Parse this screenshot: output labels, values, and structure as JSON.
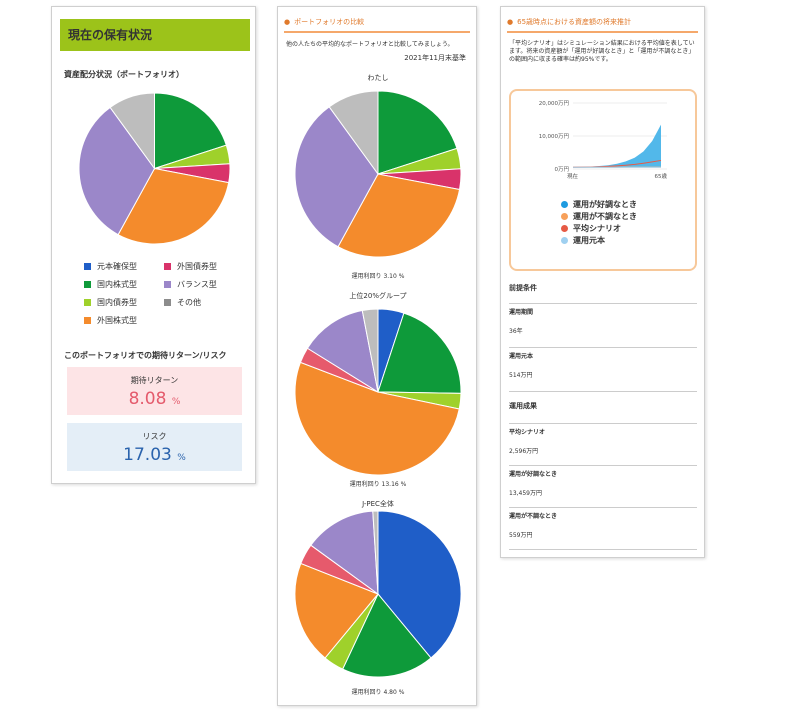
{
  "left": {
    "header": "現在の保有状況",
    "subtitle": "資産配分状況（ポートフォリオ）",
    "legend": [
      {
        "label": "元本確保型",
        "color": "#1f5ec8"
      },
      {
        "label": "外国債券型",
        "color": "#d9336a"
      },
      {
        "label": "国内株式型",
        "color": "#0e9a3a"
      },
      {
        "label": "バランス型",
        "color": "#9b87c9"
      },
      {
        "label": "国内債券型",
        "color": "#9fd12b"
      },
      {
        "label": "その他",
        "color": "#8c8c8c"
      },
      {
        "label": "外国株式型",
        "color": "#f48b2c"
      }
    ],
    "section_title": "このポートフォリオでの期待リターン/リスク",
    "expected_return": {
      "label": "期待リターン",
      "value": "8.08",
      "unit": "%"
    },
    "risk": {
      "label": "リスク",
      "value": "17.03",
      "unit": "%"
    }
  },
  "mid": {
    "header": "ポートフォリオの比較",
    "intro": "他の人たちの平均的なポートフォリオと比較してみましょう。",
    "as_of": "2021年11月末基準",
    "pies": [
      {
        "title": "わたし",
        "caption": "運用利回り 3.10 %"
      },
      {
        "title": "上位20%グループ",
        "caption": "運用利回り 13.16 %"
      },
      {
        "title": "J-PEC全体",
        "caption": "運用利回り 4.80 %"
      }
    ]
  },
  "right": {
    "header": "65歳時点における資産額の将来推計",
    "desc": "「平均シナリオ」はシミュレーション結果における平均値を表しています。将来の資産額が「運用が好調なとき」と「運用が不調なとき」の範囲内に収まる確率は約95%です。",
    "y_ticks": [
      "20,000万円",
      "10,000万円",
      "0万円"
    ],
    "x_ticks": [
      "現在",
      "65歳"
    ],
    "legend": [
      {
        "label": "運用が好調なとき",
        "color": "#1e9be0"
      },
      {
        "label": "運用が不調なとき",
        "color": "#f7a05a"
      },
      {
        "label": "平均シナリオ",
        "color": "#e65a45"
      },
      {
        "label": "運用元本",
        "color": "#9fd0f0"
      }
    ],
    "conditions_title": "前提条件",
    "conditions": [
      {
        "label": "運用期間",
        "value": "36年"
      },
      {
        "label": "運用元本",
        "value": "514万円"
      }
    ],
    "results_title": "運用成果",
    "results": [
      {
        "label": "平均シナリオ",
        "value": "2,596万円"
      },
      {
        "label": "運用が好調なとき",
        "value": "13,459万円"
      },
      {
        "label": "運用が不調なとき",
        "value": "559万円"
      }
    ]
  },
  "chart_data": [
    {
      "type": "pie",
      "name": "my-portfolio",
      "categories": [
        "国内株式型",
        "国内債券型",
        "外国債券型",
        "外国株式型",
        "バランス型",
        "その他"
      ],
      "colors": [
        "#0e9a3a",
        "#9fd12b",
        "#d9336a",
        "#f48b2c",
        "#9b87c9",
        "#bdbdbd"
      ],
      "values": [
        20,
        4,
        4,
        30,
        32,
        10
      ]
    },
    {
      "type": "pie",
      "name": "top20-group",
      "categories": [
        "元本確保型",
        "国内株式型",
        "国内債券型",
        "外国株式型",
        "外国債券型",
        "バランス型",
        "その他"
      ],
      "colors": [
        "#1f5ec8",
        "#0e9a3a",
        "#9fd12b",
        "#f48b2c",
        "#e65a6c",
        "#9b87c9",
        "#bdbdbd"
      ],
      "values": [
        5,
        20,
        3,
        52,
        3,
        13,
        3
      ]
    },
    {
      "type": "pie",
      "name": "jpec-all",
      "categories": [
        "元本確保型",
        "国内株式型",
        "国内債券型",
        "外国株式型",
        "外国債券型",
        "バランス型",
        "その他"
      ],
      "colors": [
        "#1f5ec8",
        "#0e9a3a",
        "#9fd12b",
        "#f48b2c",
        "#e65a6c",
        "#9b87c9",
        "#bdbdbd"
      ],
      "values": [
        39,
        18,
        4,
        20,
        4,
        14,
        1
      ]
    },
    {
      "type": "area",
      "name": "future-estimate",
      "x": [
        0,
        1,
        2,
        3,
        4,
        5,
        6,
        7,
        8,
        9,
        10
      ],
      "x_tick_labels": [
        "現在",
        "65歳"
      ],
      "ylim": [
        0,
        20000
      ],
      "series": [
        {
          "name": "運用が好調なとき",
          "values": [
            514,
            600,
            720,
            900,
            1150,
            1600,
            2300,
            3400,
            5300,
            8500,
            13459
          ]
        },
        {
          "name": "運用が不調なとき",
          "values": [
            514,
            520,
            530,
            540,
            545,
            548,
            552,
            554,
            556,
            558,
            559
          ]
        },
        {
          "name": "平均シナリオ",
          "values": [
            514,
            560,
            620,
            700,
            800,
            950,
            1150,
            1400,
            1750,
            2150,
            2596
          ]
        },
        {
          "name": "運用元本",
          "values": [
            514,
            514,
            514,
            514,
            514,
            514,
            514,
            514,
            514,
            514,
            514
          ]
        }
      ]
    }
  ]
}
